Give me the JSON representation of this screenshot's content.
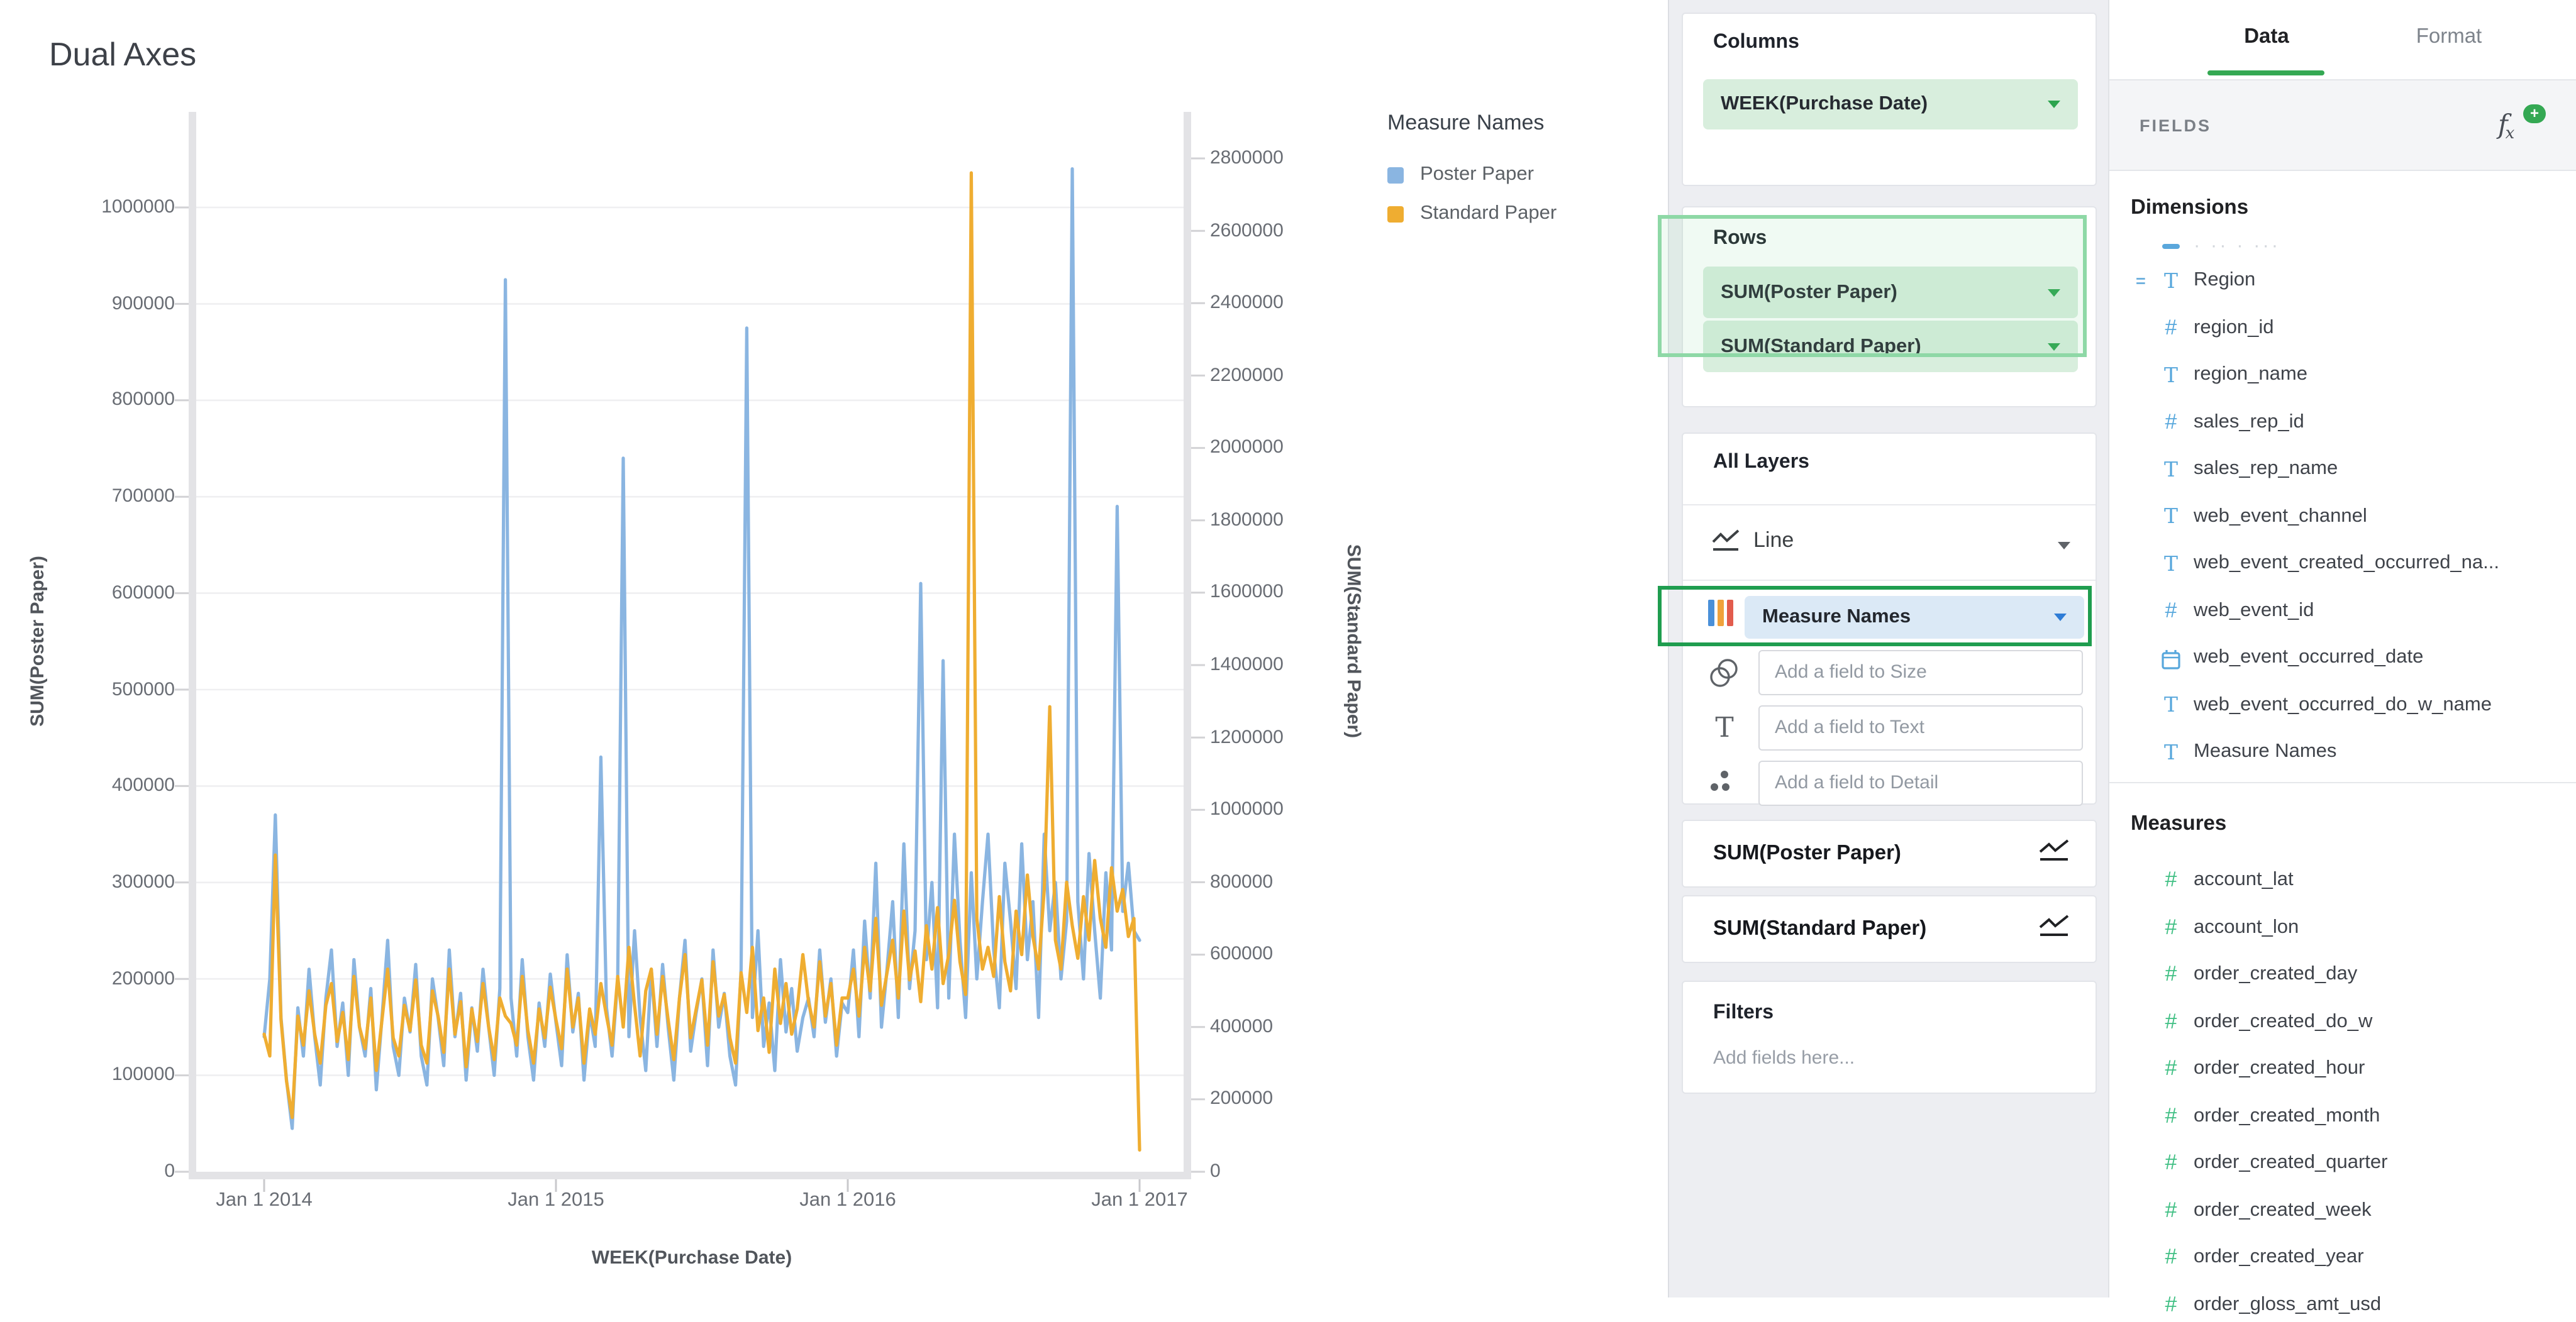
{
  "chart_data": {
    "type": "line",
    "title": "Dual Axes",
    "x_axis": {
      "title": "WEEK(Purchase Date)",
      "tick_labels": [
        "Jan 1 2014",
        "Jan 1 2015",
        "Jan 1 2016",
        "Jan 1 2017"
      ]
    },
    "left_axis": {
      "title": "SUM(Poster Paper)",
      "min": 0,
      "max": 1100000,
      "ticks": [
        1000000,
        900000,
        800000,
        700000,
        600000,
        500000,
        400000,
        300000,
        200000,
        100000,
        0
      ]
    },
    "right_axis": {
      "title": "SUM(Standard Paper)",
      "min": 0,
      "max": 2930000,
      "ticks": [
        2800000,
        2600000,
        2400000,
        2200000,
        2000000,
        1800000,
        1600000,
        1400000,
        1200000,
        1000000,
        800000,
        600000,
        400000,
        200000,
        0
      ]
    },
    "legend": {
      "title": "Measure Names",
      "position": "right"
    },
    "grid": "horizontal",
    "x_unit": "week",
    "series": [
      {
        "name": "Poster Paper",
        "axis": "left",
        "color": "#8ab5e1",
        "values": [
          140000,
          200000,
          370000,
          160000,
          95000,
          45000,
          170000,
          120000,
          210000,
          140000,
          90000,
          180000,
          230000,
          130000,
          175000,
          100000,
          220000,
          150000,
          120000,
          190000,
          85000,
          160000,
          240000,
          130000,
          100000,
          180000,
          145000,
          215000,
          120000,
          90000,
          200000,
          160000,
          110000,
          230000,
          140000,
          185000,
          95000,
          170000,
          125000,
          210000,
          150000,
          100000,
          190000,
          925000,
          180000,
          120000,
          220000,
          140000,
          95000,
          175000,
          130000,
          205000,
          155000,
          110000,
          225000,
          145000,
          185000,
          95000,
          165000,
          130000,
          430000,
          170000,
          120000,
          200000,
          740000,
          140000,
          250000,
          160000,
          105000,
          210000,
          130000,
          215000,
          150000,
          95000,
          180000,
          240000,
          125000,
          165000,
          200000,
          110000,
          230000,
          150000,
          185000,
          120000,
          90000,
          210000,
          875000,
          160000,
          250000,
          130000,
          175000,
          105000,
          220000,
          145000,
          190000,
          125000,
          160000,
          180000,
          140000,
          230000,
          155000,
          200000,
          120000,
          175000,
          165000,
          230000,
          140000,
          260000,
          180000,
          320000,
          150000,
          210000,
          280000,
          160000,
          340000,
          190000,
          250000,
          610000,
          220000,
          300000,
          170000,
          530000,
          180000,
          350000,
          240000,
          160000,
          310000,
          200000,
          280000,
          350000,
          230000,
          170000,
          320000,
          260000,
          190000,
          340000,
          220000,
          280000,
          160000,
          350000,
          250000,
          300000,
          200000,
          260000,
          1040000,
          280000,
          200000,
          330000,
          250000,
          180000,
          310000,
          230000,
          690000,
          270000,
          320000,
          250000,
          240000
        ]
      },
      {
        "name": "Standard Paper",
        "axis": "right",
        "color": "#efad31",
        "values": [
          380000,
          320000,
          875000,
          420000,
          250000,
          150000,
          430000,
          350000,
          500000,
          380000,
          300000,
          460000,
          520000,
          360000,
          440000,
          310000,
          540000,
          400000,
          340000,
          480000,
          280000,
          420000,
          560000,
          370000,
          320000,
          460000,
          390000,
          530000,
          350000,
          300000,
          500000,
          430000,
          330000,
          560000,
          380000,
          470000,
          290000,
          450000,
          360000,
          520000,
          400000,
          310000,
          480000,
          430000,
          410000,
          350000,
          540000,
          390000,
          300000,
          450000,
          370000,
          510000,
          420000,
          340000,
          560000,
          400000,
          480000,
          300000,
          450000,
          380000,
          520000,
          430000,
          350000,
          540000,
          400000,
          620000,
          460000,
          320000,
          500000,
          560000,
          380000,
          540000,
          420000,
          310000,
          480000,
          600000,
          370000,
          450000,
          530000,
          350000,
          580000,
          430000,
          490000,
          370000,
          300000,
          550000,
          440000,
          620000,
          390000,
          480000,
          330000,
          560000,
          410000,
          520000,
          380000,
          450000,
          600000,
          470000,
          400000,
          580000,
          430000,
          520000,
          350000,
          480000,
          480000,
          560000,
          430000,
          620000,
          500000,
          700000,
          460000,
          550000,
          640000,
          480000,
          720000,
          530000,
          610000,
          470000,
          680000,
          560000,
          730000,
          520000,
          600000,
          750000,
          580000,
          490000,
          2760000,
          700000,
          560000,
          620000,
          540000,
          760000,
          580000,
          500000,
          720000,
          600000,
          820000,
          650000,
          560000,
          780000,
          1285000,
          640000,
          560000,
          800000,
          680000,
          590000,
          760000,
          640000,
          860000,
          700000,
          620000,
          840000,
          720000,
          780000,
          650000,
          700000,
          60000
        ]
      }
    ]
  },
  "shelf": {
    "columns_label": "Columns",
    "columns_pill": "WEEK(Purchase Date)",
    "rows_label": "Rows",
    "rows_pills": [
      "SUM(Poster Paper)",
      "SUM(Standard Paper)"
    ],
    "all_layers_label": "All Layers",
    "layer_type": "Line",
    "color_pill": "Measure Names",
    "size_placeholder": "Add a field to Size",
    "text_placeholder": "Add a field to Text",
    "detail_placeholder": "Add a field to Detail",
    "sum_cards": [
      "SUM(Poster Paper)",
      "SUM(Standard Paper)"
    ],
    "filters_label": "Filters",
    "filters_placeholder": "Add fields here..."
  },
  "fields": {
    "tabs": {
      "data": "Data",
      "format": "Format"
    },
    "header": "FIELDS",
    "dimensions": {
      "header": "Dimensions",
      "items": [
        {
          "icon": "ghost",
          "label": "· ·· · ···"
        },
        {
          "icon": "text",
          "prefix": "=",
          "label": "Region"
        },
        {
          "icon": "hash",
          "label": "region_id"
        },
        {
          "icon": "text",
          "label": "region_name"
        },
        {
          "icon": "hash",
          "label": "sales_rep_id"
        },
        {
          "icon": "text",
          "label": "sales_rep_name"
        },
        {
          "icon": "text",
          "label": "web_event_channel"
        },
        {
          "icon": "text",
          "label": "web_event_created_occurred_na..."
        },
        {
          "icon": "hash",
          "label": "web_event_id"
        },
        {
          "icon": "calendar",
          "label": "web_event_occurred_date"
        },
        {
          "icon": "text",
          "label": "web_event_occurred_do_w_name"
        },
        {
          "icon": "text",
          "label": "Measure Names"
        }
      ]
    },
    "measures": {
      "header": "Measures",
      "items": [
        {
          "icon": "hash",
          "label": "account_lat"
        },
        {
          "icon": "hash",
          "label": "account_lon"
        },
        {
          "icon": "hash",
          "label": "order_created_day"
        },
        {
          "icon": "hash",
          "label": "order_created_do_w"
        },
        {
          "icon": "hash",
          "label": "order_created_hour"
        },
        {
          "icon": "hash",
          "label": "order_created_month"
        },
        {
          "icon": "hash",
          "label": "order_created_quarter"
        },
        {
          "icon": "hash",
          "label": "order_created_week"
        },
        {
          "icon": "hash",
          "label": "order_created_year"
        },
        {
          "icon": "hash",
          "label": "order_gloss_amt_usd"
        }
      ]
    }
  }
}
